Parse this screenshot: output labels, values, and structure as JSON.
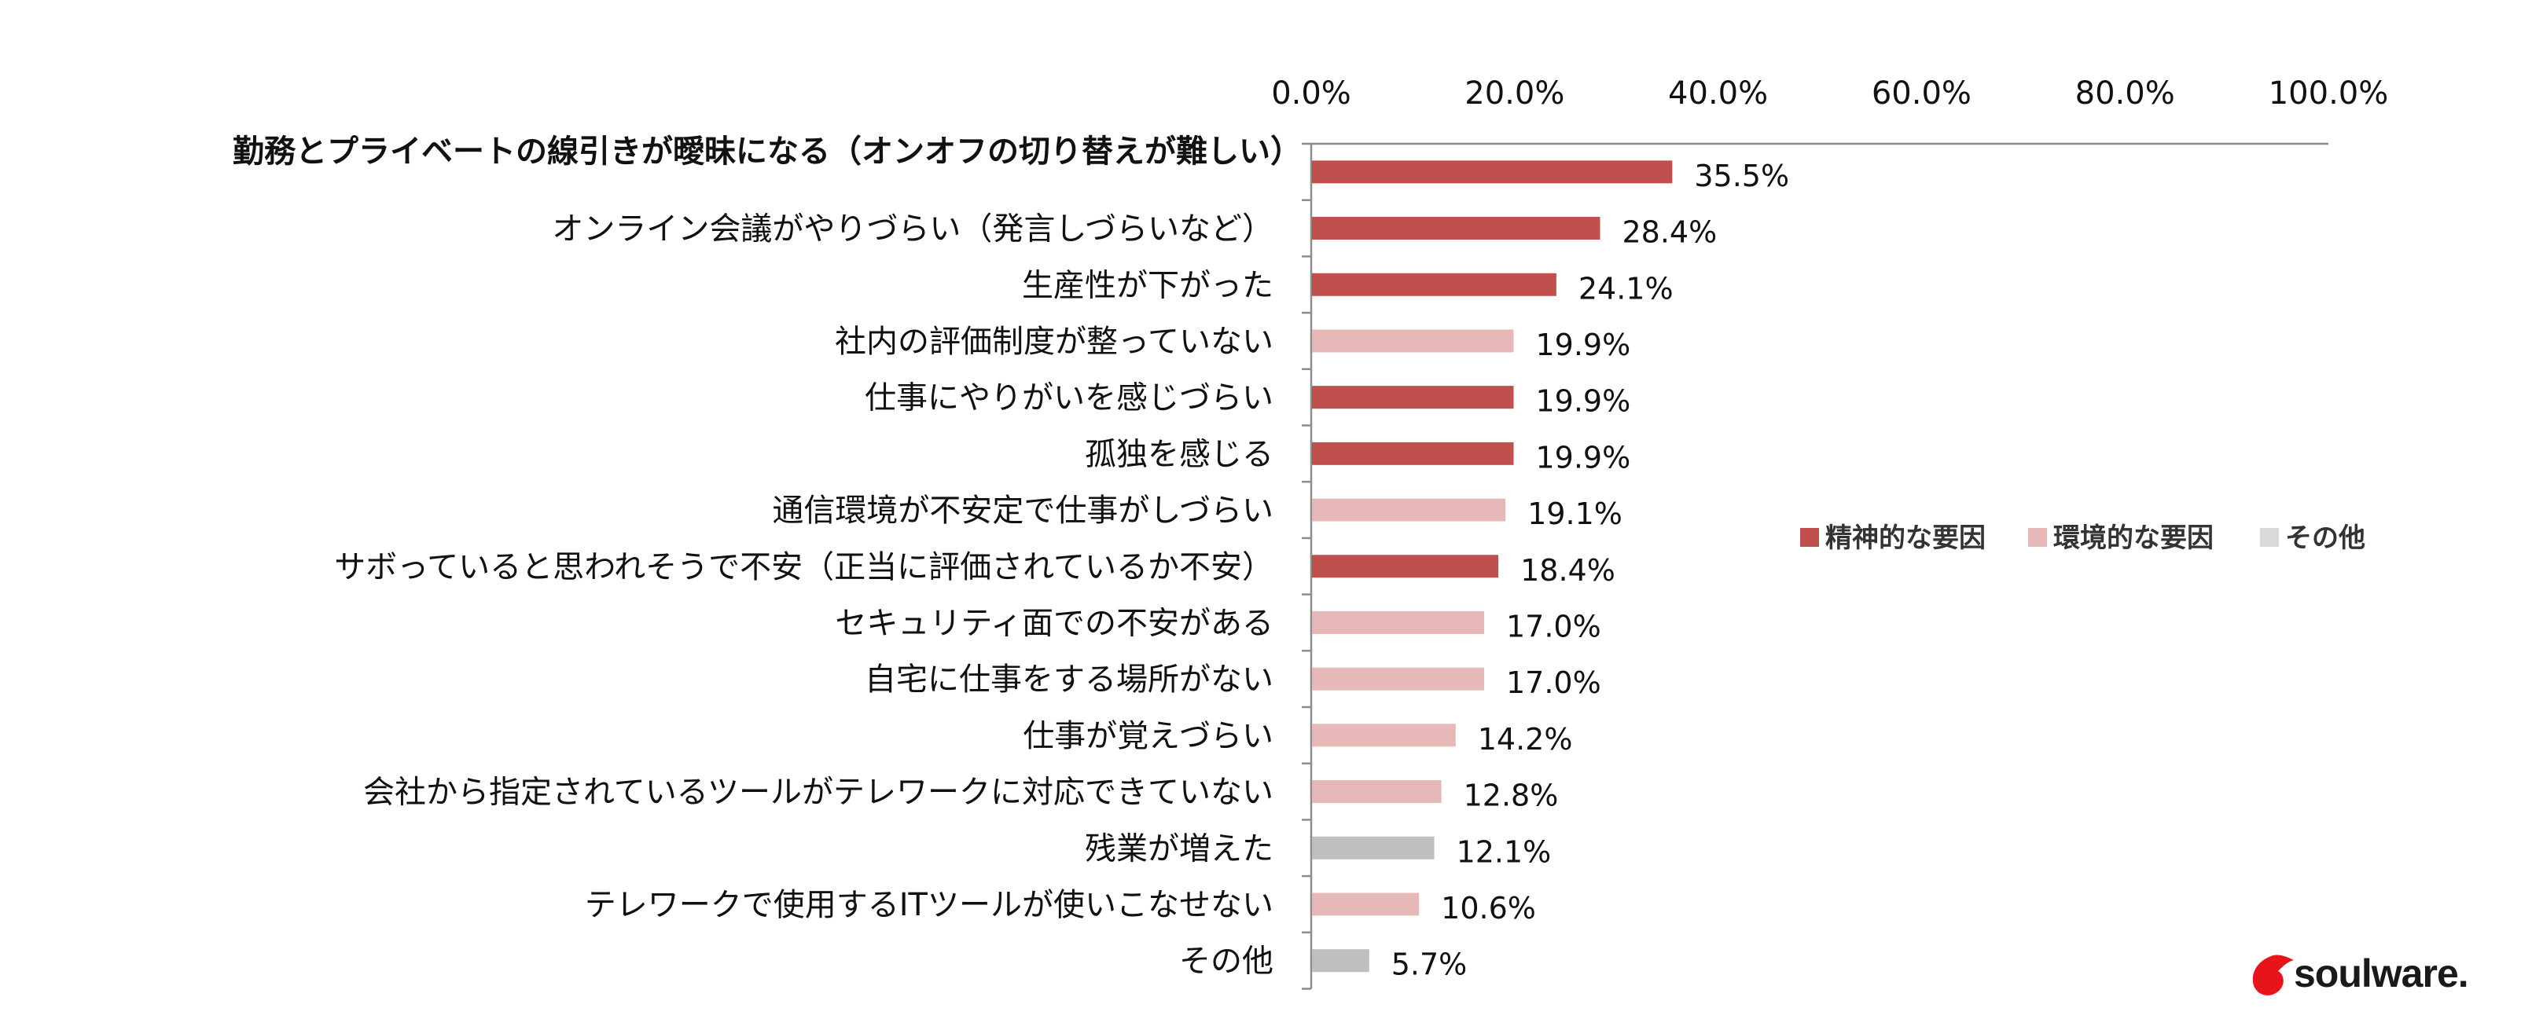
{
  "chart_data": {
    "type": "bar",
    "orientation": "horizontal",
    "xlim": [
      0,
      100
    ],
    "x_ticks": [
      "0.0%",
      "20.0%",
      "40.0%",
      "60.0%",
      "80.0%",
      "100.0%"
    ],
    "x_tick_values": [
      0,
      20,
      40,
      60,
      80,
      100
    ],
    "categories": [
      "勤務とプライベートの線引きが曖昧になる（オンオフの切り替えが難しい）",
      "オンライン会議がやりづらい（発言しづらいなど）",
      "生産性が下がった",
      "社内の評価制度が整っていない",
      "仕事にやりがいを感じづらい",
      "孤独を感じる",
      "通信環境が不安定で仕事がしづらい",
      "サボっていると思われそうで不安（正当に評価されているか不安）",
      "セキュリティ面での不安がある",
      "自宅に仕事をする場所がない",
      "仕事が覚えづらい",
      "会社から指定されているツールがテレワークに対応できていない",
      "残業が増えた",
      "テレワークで使用するITツールが使いこなせない",
      "その他"
    ],
    "values": [
      35.5,
      28.4,
      24.1,
      19.9,
      19.9,
      19.9,
      19.1,
      18.4,
      17.0,
      17.0,
      14.2,
      12.8,
      12.1,
      10.6,
      5.7
    ],
    "value_labels": [
      "35.5%",
      "28.4%",
      "24.1%",
      "19.9%",
      "19.9%",
      "19.9%",
      "19.1%",
      "18.4%",
      "17.0%",
      "17.0%",
      "14.2%",
      "12.8%",
      "12.1%",
      "10.6%",
      "5.7%"
    ],
    "groups": [
      0,
      0,
      0,
      1,
      0,
      0,
      1,
      0,
      1,
      1,
      1,
      1,
      2,
      1,
      2
    ],
    "legend": [
      {
        "name": "精神的な要因",
        "color": "#c0504d"
      },
      {
        "name": "環境的な要因",
        "color": "#e6b9b8"
      },
      {
        "name": "その他",
        "color": "#d9d9d9"
      }
    ],
    "bar_colors": [
      "#c0504d",
      "#e6b9b8",
      "#bfbfbf"
    ],
    "legend_placement": "right",
    "grid": false
  },
  "logo": {
    "text": "soulware.",
    "color": "#e8141c"
  }
}
